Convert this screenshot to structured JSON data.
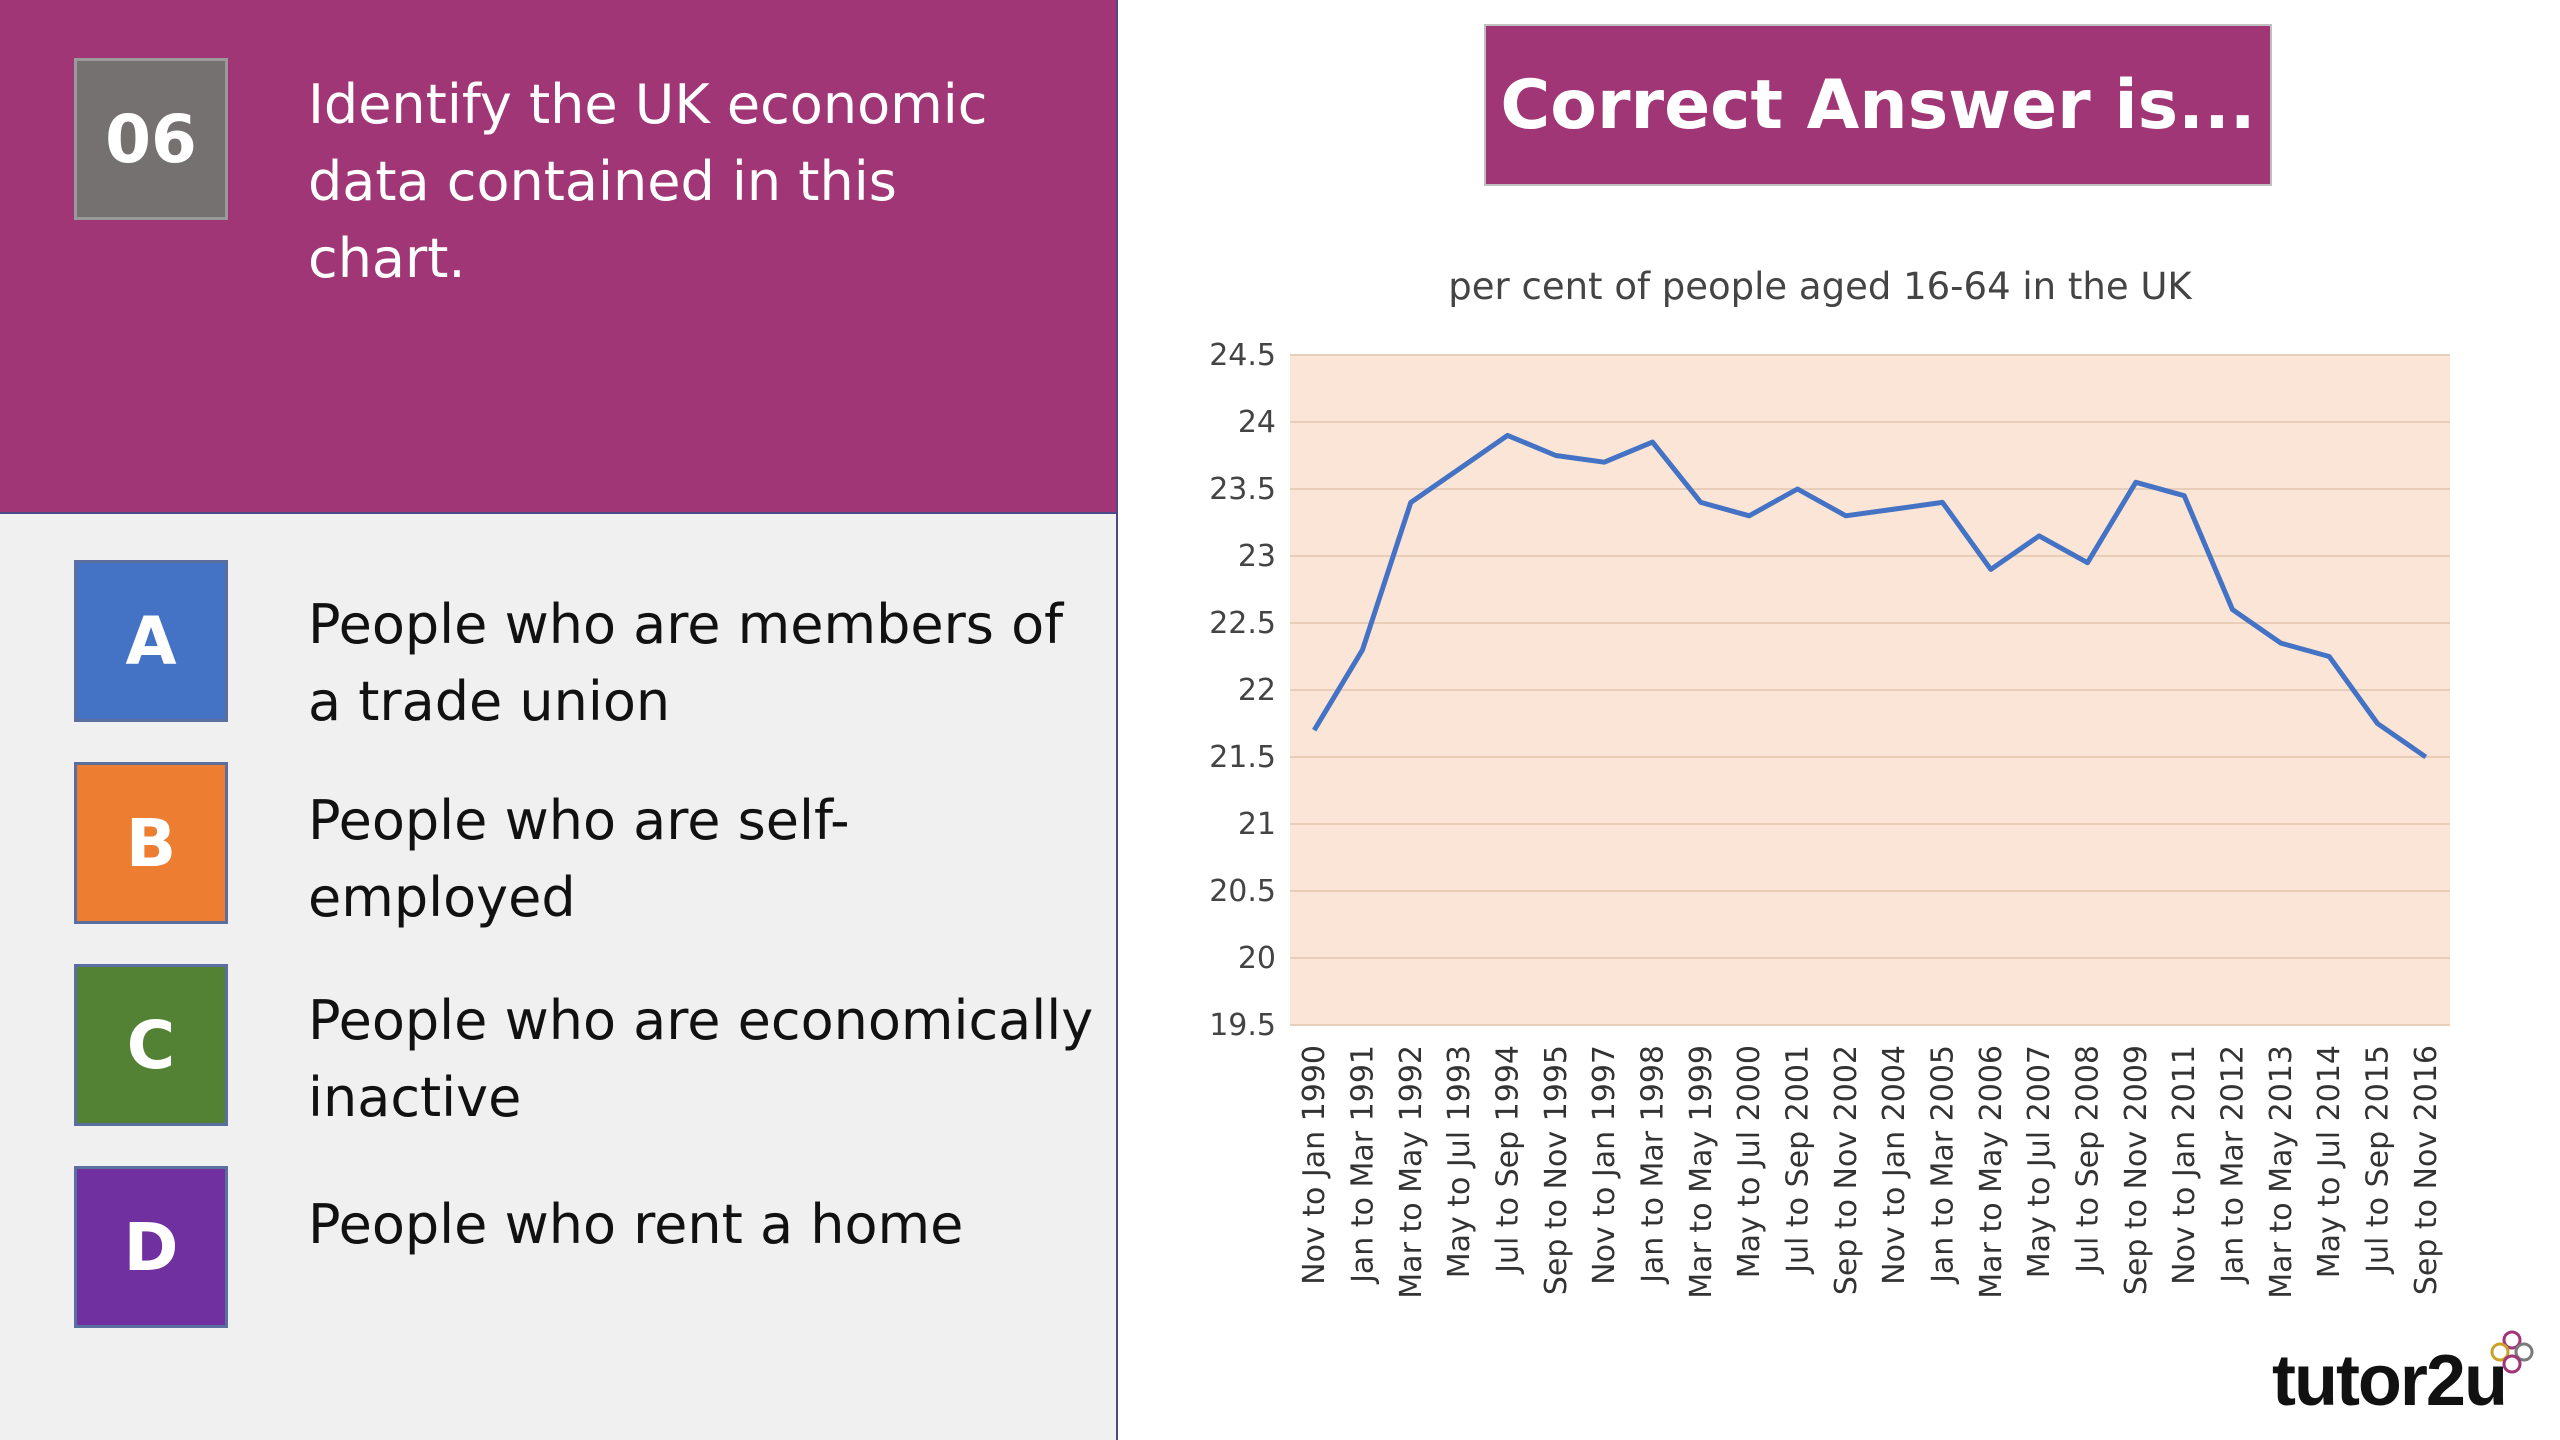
{
  "question": {
    "number": "06",
    "text": "Identify the UK economic data contained in this chart."
  },
  "options": [
    {
      "letter": "A",
      "text": "People who are members of a trade union",
      "color": "#4472c4"
    },
    {
      "letter": "B",
      "text": "People who are self-employed",
      "color": "#ed7d31"
    },
    {
      "letter": "C",
      "text": "People who are economically inactive",
      "color": "#548235"
    },
    {
      "letter": "D",
      "text": "People who rent a home",
      "color": "#7030a0"
    }
  ],
  "answer_banner": "Correct Answer is...",
  "brand": "tutor2u",
  "colors": {
    "header": "#a03675",
    "line": "#4472c4",
    "plot_bg": "#fbe5d6"
  },
  "chart_data": {
    "type": "line",
    "title": "per cent of people aged 16-64 in the UK",
    "xlabel": "",
    "ylabel": "",
    "ylim": [
      19.5,
      24.5
    ],
    "yticks": [
      19.5,
      20,
      20.5,
      21,
      21.5,
      22,
      22.5,
      23,
      23.5,
      24,
      24.5
    ],
    "grid": true,
    "legend": "none",
    "categories": [
      "Nov to Jan 1990",
      "Jan to Mar 1991",
      "Mar to May 1992",
      "May to Jul 1993",
      "Jul to Sep 1994",
      "Sep to Nov 1995",
      "Nov to Jan 1997",
      "Jan to Mar 1998",
      "Mar to May 1999",
      "May to Jul 2000",
      "Jul to Sep 2001",
      "Sep to Nov 2002",
      "Nov to Jan 2004",
      "Jan to Mar 2005",
      "Mar to May 2006",
      "May to Jul 2007",
      "Jul to Sep 2008",
      "Sep to Nov 2009",
      "Nov to Jan 2011",
      "Jan to Mar 2012",
      "Mar to May 2013",
      "May to Jul 2014",
      "Jul to Sep 2015",
      "Sep to Nov 2016"
    ],
    "series": [
      {
        "values": [
          21.7,
          22.3,
          23.4,
          23.65,
          23.9,
          23.75,
          23.7,
          23.85,
          23.4,
          23.3,
          23.5,
          23.3,
          23.35,
          23.4,
          22.9,
          23.15,
          22.95,
          23.55,
          23.45,
          22.6,
          22.35,
          22.25,
          21.75,
          21.5
        ]
      }
    ]
  }
}
